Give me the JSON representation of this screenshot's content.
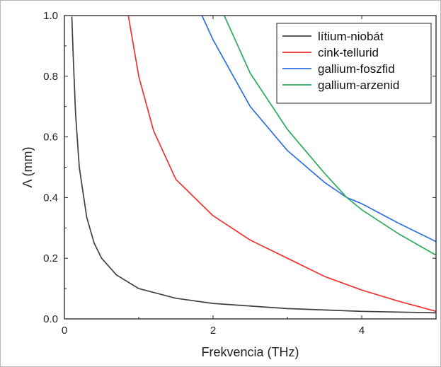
{
  "chart_data": {
    "type": "line",
    "title": "",
    "xlabel": "Frekvencia (THz)",
    "ylabel": "Λ (mm)",
    "xlim": [
      0,
      5
    ],
    "ylim": [
      0,
      1.0
    ],
    "x_ticks": [
      0,
      2,
      4
    ],
    "y_ticks": [
      0.0,
      0.2,
      0.4,
      0.6,
      0.8,
      1.0
    ],
    "x_tick_labels": [
      "0",
      "2",
      "4"
    ],
    "y_tick_labels": [
      "0.0",
      "0.2",
      "0.4",
      "0.6",
      "0.8",
      "1.0"
    ],
    "grid": false,
    "legend_position": "top-right",
    "series": [
      {
        "name": "lítium-niobát",
        "color": "#404040",
        "x": [
          0.1,
          0.12,
          0.15,
          0.2,
          0.3,
          0.4,
          0.5,
          0.7,
          1.0,
          1.5,
          2.0,
          3.0,
          4.0,
          5.0
        ],
        "y": [
          0.995,
          0.855,
          0.675,
          0.5,
          0.335,
          0.25,
          0.2,
          0.145,
          0.1,
          0.068,
          0.051,
          0.034,
          0.025,
          0.02
        ]
      },
      {
        "name": "cink-tellurid",
        "color": "#ee3333",
        "x": [
          0.86,
          1.0,
          1.2,
          1.5,
          2.0,
          2.5,
          3.0,
          3.5,
          4.0,
          4.5,
          5.0
        ],
        "y": [
          1.0,
          0.8,
          0.62,
          0.46,
          0.34,
          0.26,
          0.2,
          0.14,
          0.095,
          0.058,
          0.025
        ]
      },
      {
        "name": "gallium-foszfid",
        "color": "#2f6fe0",
        "x": [
          1.85,
          2.0,
          2.5,
          3.0,
          3.5,
          3.8,
          4.0,
          4.5,
          5.0
        ],
        "y": [
          1.0,
          0.92,
          0.7,
          0.555,
          0.45,
          0.4,
          0.38,
          0.315,
          0.255
        ]
      },
      {
        "name": "gallium-arzenid",
        "color": "#2aab5c",
        "x": [
          2.15,
          2.5,
          3.0,
          3.5,
          3.8,
          4.0,
          4.5,
          5.0
        ],
        "y": [
          1.0,
          0.81,
          0.625,
          0.48,
          0.4,
          0.36,
          0.28,
          0.21
        ]
      }
    ]
  }
}
